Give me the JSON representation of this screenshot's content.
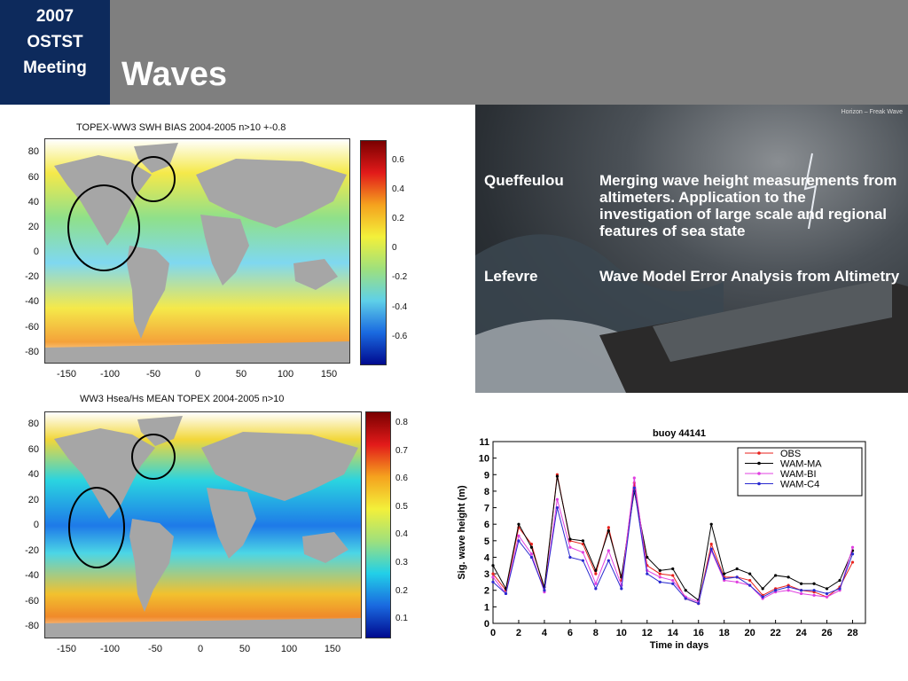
{
  "header": {
    "badge": [
      "2007",
      "OSTST",
      "Meeting"
    ],
    "title": "Waves",
    "bar_color": "#7f7f7f",
    "badge_color": "#0d2a5c"
  },
  "map_top": {
    "title": "TOPEX-WW3 SWH BIAS 2004-2005 n>10 +-0.8",
    "y_ticks": [
      "80",
      "60",
      "40",
      "20",
      "0",
      "-20",
      "-40",
      "-60",
      "-80"
    ],
    "x_ticks": [
      "-150",
      "-100",
      "-50",
      "0",
      "50",
      "100",
      "150"
    ],
    "colorbar_ticks": [
      "0.6",
      "0.4",
      "0.2",
      "0",
      "-0.2",
      "-0.4",
      "-0.6"
    ]
  },
  "map_bottom": {
    "title": "WW3 Hsea/Hs MEAN TOPEX 2004-2005 n>10",
    "y_ticks": [
      "80",
      "60",
      "40",
      "20",
      "0",
      "-20",
      "-40",
      "-60",
      "-80"
    ],
    "x_ticks": [
      "-150",
      "-100",
      "-50",
      "0",
      "50",
      "100",
      "150"
    ],
    "colorbar_ticks": [
      "0.8",
      "0.7",
      "0.6",
      "0.5",
      "0.4",
      "0.3",
      "0.2",
      "0.1"
    ]
  },
  "photo": {
    "credit": "Horizon – Freak Wave"
  },
  "papers": [
    {
      "author": "Queffeulou",
      "title": "Merging wave height measurements from altimeters. Application to the investigation of large scale and regional features of sea state"
    },
    {
      "author": "Lefevre",
      "title": "Wave Model Error Analysis from Altimetry"
    }
  ],
  "chart_data": {
    "type": "line",
    "title": "buoy   44141",
    "xlabel": "Time in days",
    "ylabel": "Sig. wave height (m)",
    "xlim": [
      0,
      29
    ],
    "ylim": [
      0,
      11
    ],
    "x_ticks": [
      0,
      2,
      4,
      6,
      8,
      10,
      12,
      14,
      16,
      18,
      20,
      22,
      24,
      26,
      28
    ],
    "y_ticks": [
      0,
      1,
      2,
      3,
      4,
      5,
      6,
      7,
      8,
      9,
      10,
      11
    ],
    "legend_position": "top-right",
    "x": [
      0,
      1,
      2,
      3,
      4,
      5,
      6,
      7,
      8,
      9,
      10,
      11,
      12,
      13,
      14,
      15,
      16,
      17,
      18,
      19,
      20,
      21,
      22,
      23,
      24,
      25,
      26,
      27,
      28
    ],
    "series": [
      {
        "name": "OBS",
        "color": "#e8221d",
        "values": [
          3.0,
          2.0,
          5.8,
          4.8,
          2.0,
          9.0,
          5.0,
          4.8,
          3.0,
          5.8,
          2.6,
          8.5,
          3.5,
          3.0,
          2.9,
          1.5,
          1.2,
          4.8,
          2.8,
          2.8,
          2.6,
          1.7,
          2.1,
          2.3,
          2.0,
          1.9,
          1.6,
          2.2,
          3.7
        ]
      },
      {
        "name": "WAM-MA",
        "color": "#000000",
        "values": [
          3.5,
          2.1,
          6.0,
          4.6,
          2.2,
          8.9,
          5.1,
          5.0,
          3.2,
          5.6,
          2.8,
          8.0,
          4.0,
          3.2,
          3.3,
          2.0,
          1.4,
          6.0,
          3.0,
          3.3,
          3.0,
          2.1,
          2.9,
          2.8,
          2.4,
          2.4,
          2.1,
          2.6,
          4.4
        ]
      },
      {
        "name": "WAM-BI",
        "color": "#e040e0",
        "values": [
          2.8,
          1.8,
          5.3,
          4.2,
          1.9,
          7.5,
          4.6,
          4.3,
          2.4,
          4.4,
          2.3,
          8.8,
          3.2,
          2.8,
          2.6,
          1.6,
          1.3,
          4.4,
          2.6,
          2.5,
          2.3,
          1.5,
          1.9,
          2.0,
          1.8,
          1.7,
          1.6,
          2.0,
          4.6
        ]
      },
      {
        "name": "WAM-C4",
        "color": "#2a2ad0",
        "values": [
          2.5,
          1.8,
          5.0,
          4.0,
          2.0,
          7.0,
          4.0,
          3.8,
          2.1,
          3.8,
          2.1,
          8.2,
          3.0,
          2.5,
          2.4,
          1.5,
          1.2,
          4.5,
          2.7,
          2.8,
          2.3,
          1.6,
          2.0,
          2.2,
          2.0,
          2.0,
          1.8,
          2.1,
          4.2
        ]
      }
    ]
  }
}
